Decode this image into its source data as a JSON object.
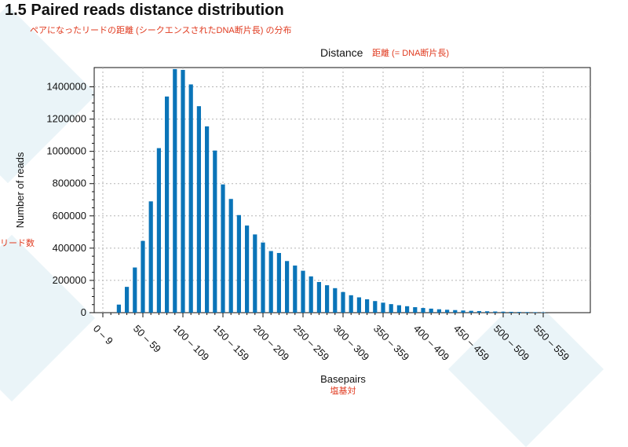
{
  "header": {
    "title": "1.5 Paired reads distance distribution",
    "subtitle_ja": "ペアになったリードの距離 (シークエンスされたDNA断片長) の分布"
  },
  "chart_data": {
    "type": "bar",
    "title": "Distance",
    "title_note_ja": "距離 (= DNA断片長)",
    "xlabel": "Basepairs",
    "xlabel_note_ja": "塩基対",
    "ylabel": "Number of reads",
    "ylabel_note_ja": "リード数",
    "ylim": [
      0,
      1500000
    ],
    "yticks": [
      0,
      200000,
      400000,
      600000,
      800000,
      1000000,
      1200000,
      1400000
    ],
    "grid": true,
    "bar_color": "#0a74b8",
    "x_tick_labels": [
      "0 – 9",
      "50 – 59",
      "100 – 109",
      "150 – 159",
      "200 – 209",
      "250 – 259",
      "300 – 309",
      "350 – 359",
      "400 – 409",
      "450 – 459",
      "500 – 509",
      "550 – 559"
    ],
    "categories": [
      "0-9",
      "10-19",
      "20-29",
      "30-39",
      "40-49",
      "50-59",
      "60-69",
      "70-79",
      "80-89",
      "90-99",
      "100-109",
      "110-119",
      "120-129",
      "130-139",
      "140-149",
      "150-159",
      "160-169",
      "170-179",
      "180-189",
      "190-199",
      "200-209",
      "210-219",
      "220-229",
      "230-239",
      "240-249",
      "250-259",
      "260-269",
      "270-279",
      "280-289",
      "290-299",
      "300-309",
      "310-319",
      "320-329",
      "330-339",
      "340-349",
      "350-359",
      "360-369",
      "370-379",
      "380-389",
      "390-399",
      "400-409",
      "410-419",
      "420-429",
      "430-439",
      "440-449",
      "450-459",
      "460-469",
      "470-479",
      "480-489",
      "490-499",
      "500-509",
      "510-519",
      "520-529",
      "530-539",
      "540-549",
      "550-559"
    ],
    "values": [
      0,
      0,
      50000,
      160000,
      280000,
      445000,
      690000,
      1020000,
      1340000,
      1510000,
      1505000,
      1415000,
      1280000,
      1155000,
      1005000,
      795000,
      705000,
      605000,
      540000,
      485000,
      435000,
      382000,
      370000,
      320000,
      292000,
      260000,
      225000,
      190000,
      170000,
      152000,
      128000,
      108000,
      95000,
      83000,
      72000,
      62000,
      53000,
      46000,
      40000,
      34000,
      29000,
      25000,
      21000,
      18000,
      16000,
      13500,
      11500,
      10000,
      8500,
      7200,
      6000,
      5200,
      4400,
      3700,
      3100,
      2600
    ]
  }
}
